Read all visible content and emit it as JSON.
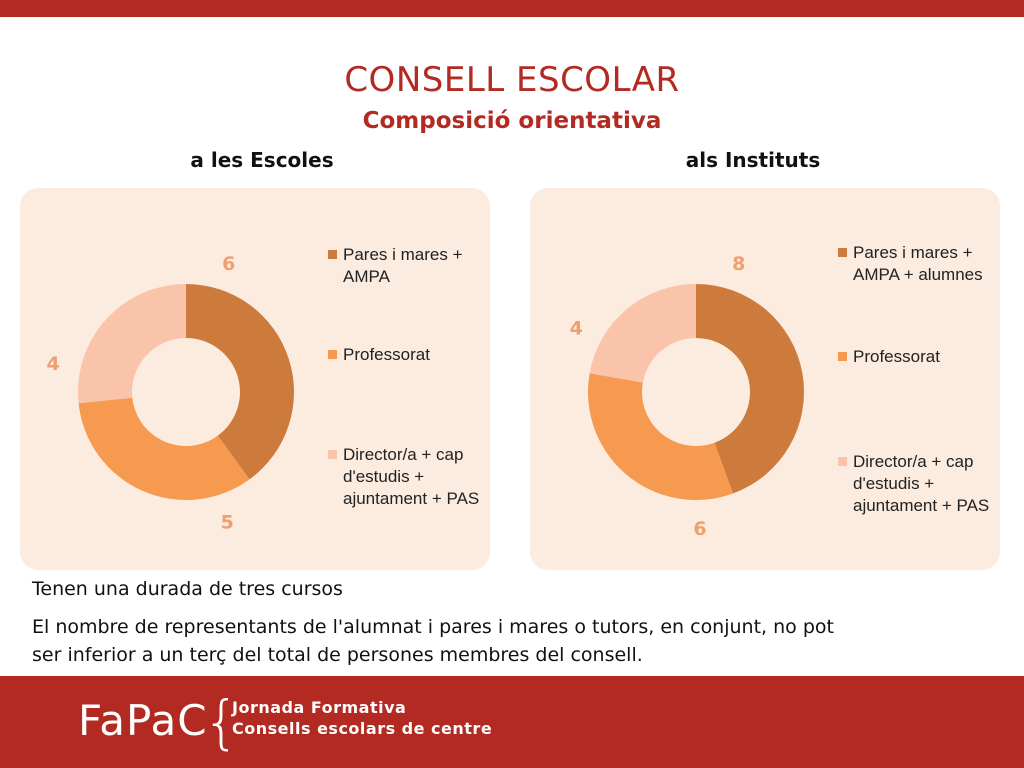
{
  "header": {
    "title": "CONSELL ESCOLAR",
    "subtitle": "Composició orientativa"
  },
  "chart_data": [
    {
      "type": "pie",
      "title": "a les Escoles",
      "categories": [
        "Pares i mares + AMPA",
        "Professorat",
        "Director/a + cap d'estudis + ajuntament + PAS"
      ],
      "values": [
        6,
        5,
        4
      ],
      "colors": [
        "#cd7b3c",
        "#f59a4f",
        "#f9c4aa"
      ],
      "legend_position": "right",
      "labels": [
        "6",
        "5",
        "4"
      ]
    },
    {
      "type": "pie",
      "title": "als Instituts",
      "categories": [
        "Pares i mares + AMPA + alumnes",
        "Professorat",
        "Director/a + cap d'estudis + ajuntament + PAS"
      ],
      "values": [
        8,
        6,
        4
      ],
      "colors": [
        "#cd7b3c",
        "#f59a4f",
        "#f9c4aa"
      ],
      "legend_position": "right",
      "labels": [
        "8",
        "6",
        "4"
      ]
    }
  ],
  "body": {
    "line1": "Tenen una durada de tres cursos",
    "line2a": "El nombre de representants de l'alumnat i pares i mares o tutors, en conjunt, no pot",
    "line2b": "ser inferior a un terç del total de persones membres del consell."
  },
  "footer": {
    "logo": "FaPaC",
    "line1": "Jornada Formativa",
    "line2": "Consells escolars de centre"
  },
  "colors": {
    "brand": "#b22a22",
    "panel": "#fcebdf",
    "label": "#f0a070"
  }
}
